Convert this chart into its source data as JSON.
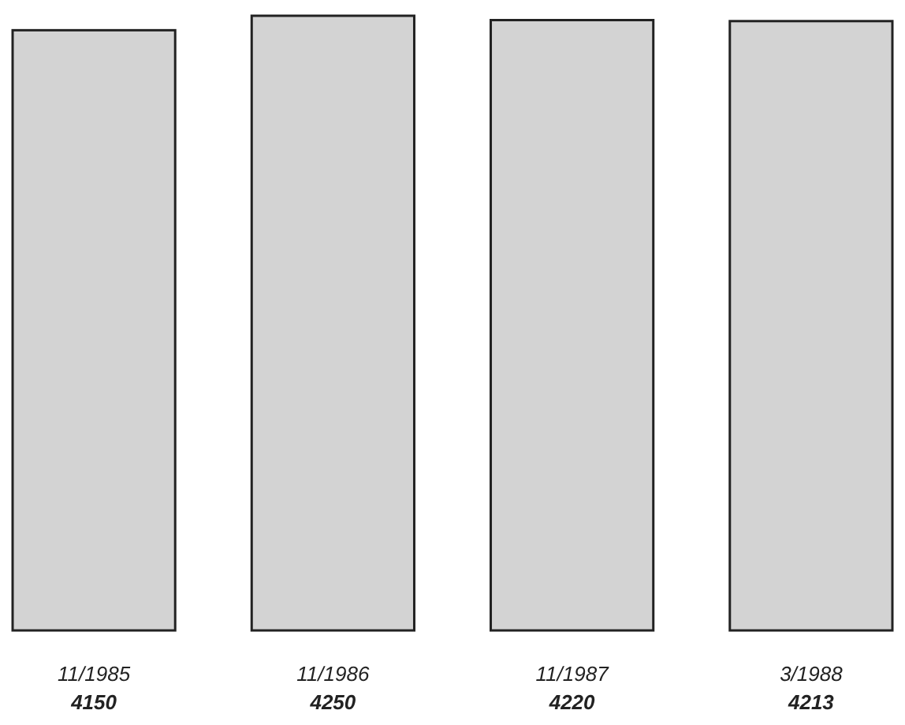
{
  "chart_data": {
    "type": "bar",
    "categories": [
      "11/1985",
      "11/1986",
      "11/1987",
      "3/1988"
    ],
    "values": [
      4150,
      4250,
      4220,
      4213
    ],
    "color": "#d3d3d3",
    "data_labels": true
  }
}
